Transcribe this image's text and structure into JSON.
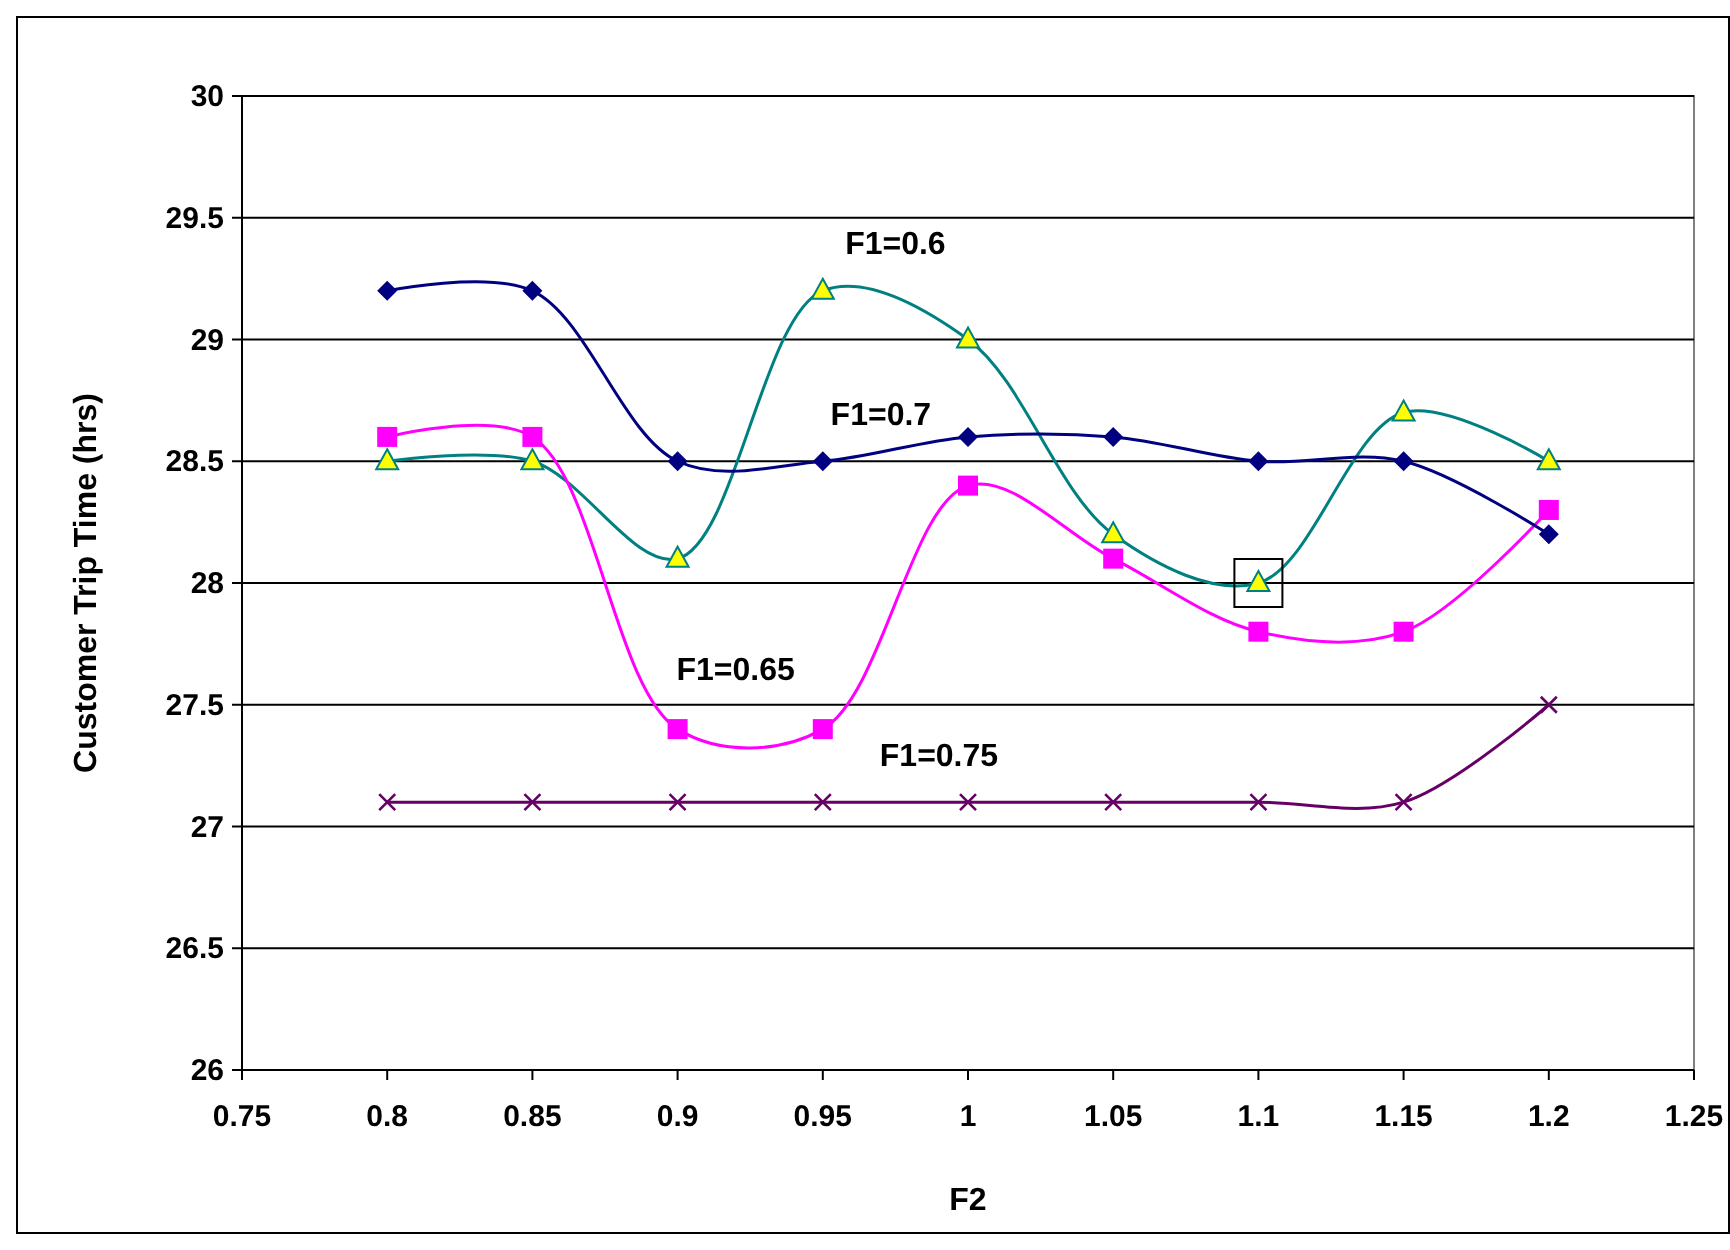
{
  "chart_data": {
    "type": "line",
    "xlabel": "F2",
    "ylabel": "Customer Trip Time (hrs)",
    "x": [
      0.8,
      0.85,
      0.9,
      0.95,
      1,
      1.05,
      1.1,
      1.15,
      1.2
    ],
    "xlim": [
      0.75,
      1.25
    ],
    "xticks": [
      0.75,
      0.8,
      0.85,
      0.9,
      0.95,
      1,
      1.05,
      1.1,
      1.15,
      1.2,
      1.25
    ],
    "ylim": [
      26,
      30
    ],
    "yticks": [
      26,
      26.5,
      27,
      27.5,
      28,
      28.5,
      29,
      29.5,
      30
    ],
    "grid": "y",
    "series": [
      {
        "name": "F1=0.6",
        "color": "#008080",
        "marker": "triangle",
        "values": [
          28.5,
          28.5,
          28.1,
          29.2,
          29,
          28.2,
          28,
          28.7,
          28.5
        ]
      },
      {
        "name": "F1=0.65",
        "color": "#ff00ff",
        "marker": "square",
        "values": [
          28.6,
          28.6,
          27.4,
          27.4,
          28.4,
          28.1,
          27.8,
          27.8,
          28.3
        ]
      },
      {
        "name": "F1=0.7",
        "color": "#000080",
        "marker": "diamond",
        "values": [
          29.2,
          29.2,
          28.5,
          28.5,
          28.6,
          28.6,
          28.5,
          28.5,
          28.2
        ]
      },
      {
        "name": "F1=0.75",
        "color": "#660066",
        "marker": "cross",
        "values": [
          27.1,
          27.1,
          27.1,
          27.1,
          27.1,
          27.1,
          27.1,
          27.1,
          27.5
        ]
      }
    ]
  }
}
